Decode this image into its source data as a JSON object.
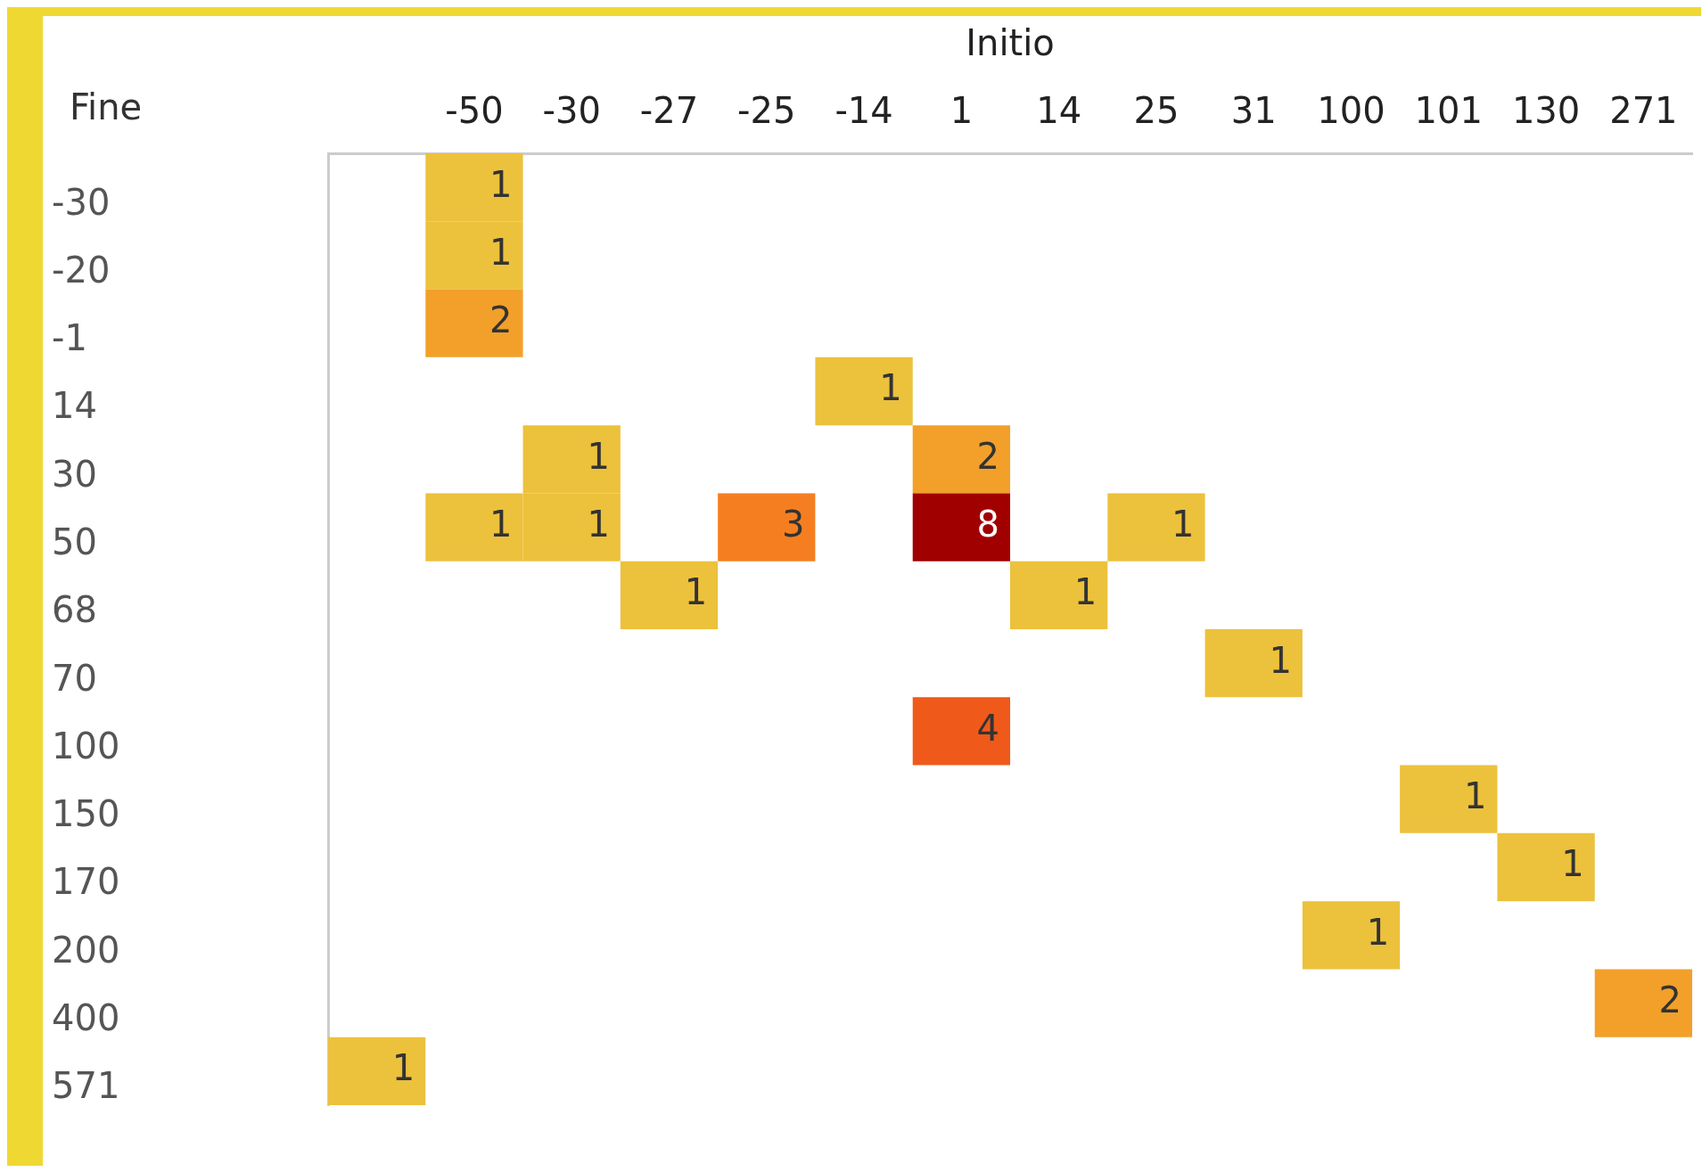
{
  "chart_data": {
    "type": "heatmap",
    "xlabel": "Initio",
    "ylabel": "Fine",
    "categories": [
      null,
      "-50",
      "-30",
      "-27",
      "-25",
      "-14",
      "1",
      "14",
      "25",
      "31",
      "100",
      "101",
      "130",
      "271"
    ],
    "y_categories": [
      "-30",
      "-20",
      "-1",
      "14",
      "30",
      "50",
      "68",
      "70",
      "100",
      "150",
      "170",
      "200",
      "400",
      "571"
    ],
    "colors": [
      "#ecc13c",
      "#f2a02a",
      "#f57f20",
      "#ef5a1a",
      "#a10000"
    ],
    "cells": [
      [
        null,
        1,
        null,
        null,
        null,
        null,
        null,
        null,
        null,
        null,
        null,
        null,
        null,
        null
      ],
      [
        null,
        1,
        null,
        null,
        null,
        null,
        null,
        null,
        null,
        null,
        null,
        null,
        null,
        null
      ],
      [
        null,
        2,
        null,
        null,
        null,
        null,
        null,
        null,
        null,
        null,
        null,
        null,
        null,
        null
      ],
      [
        null,
        null,
        null,
        null,
        null,
        1,
        null,
        null,
        null,
        null,
        null,
        null,
        null,
        null
      ],
      [
        null,
        null,
        1,
        null,
        null,
        null,
        2,
        null,
        null,
        null,
        null,
        null,
        null,
        null
      ],
      [
        null,
        1,
        1,
        null,
        3,
        null,
        8,
        null,
        1,
        null,
        null,
        null,
        null,
        null
      ],
      [
        null,
        null,
        null,
        1,
        null,
        null,
        null,
        1,
        null,
        null,
        null,
        null,
        null,
        null
      ],
      [
        null,
        null,
        null,
        null,
        null,
        null,
        null,
        null,
        null,
        1,
        null,
        null,
        null,
        null
      ],
      [
        null,
        null,
        null,
        null,
        null,
        null,
        4,
        null,
        null,
        null,
        null,
        null,
        null,
        null
      ],
      [
        null,
        null,
        null,
        null,
        null,
        null,
        null,
        null,
        null,
        null,
        null,
        1,
        null,
        null
      ],
      [
        null,
        null,
        null,
        null,
        null,
        null,
        null,
        null,
        null,
        null,
        null,
        null,
        1,
        null
      ],
      [
        null,
        null,
        null,
        null,
        null,
        null,
        null,
        null,
        null,
        null,
        1,
        null,
        null,
        null
      ],
      [
        null,
        null,
        null,
        null,
        null,
        null,
        null,
        null,
        null,
        null,
        null,
        null,
        null,
        2
      ],
      [
        1,
        null,
        null,
        null,
        null,
        null,
        null,
        null,
        null,
        null,
        null,
        null,
        null,
        null
      ]
    ],
    "data_labels": true
  }
}
